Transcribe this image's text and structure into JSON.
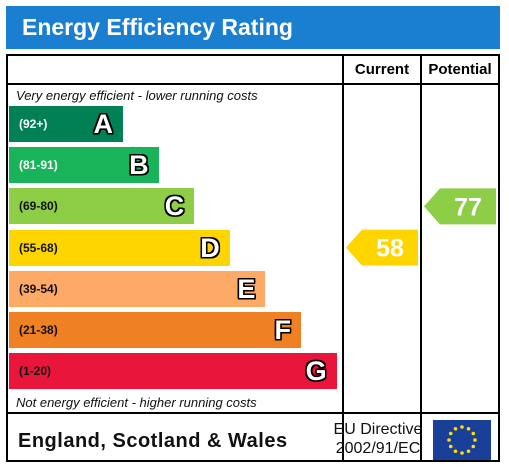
{
  "title": "Energy Efficiency Rating",
  "columns": {
    "current": "Current",
    "potential": "Potential"
  },
  "notes": {
    "top": "Very energy efficient - lower running costs",
    "bottom": "Not energy efficient - higher running costs"
  },
  "chart_data": {
    "type": "bar",
    "categories": [
      "A",
      "B",
      "C",
      "D",
      "E",
      "F",
      "G"
    ],
    "ranges": [
      "(92+)",
      "(81-91)",
      "(69-80)",
      "(55-68)",
      "(39-54)",
      "(21-38)",
      "(1-20)"
    ],
    "colors": [
      "#008054",
      "#19b459",
      "#8dce46",
      "#ffd500",
      "#fcaa65",
      "#ef8023",
      "#e9153b"
    ],
    "current": {
      "value": 58,
      "band": "D",
      "color": "#ffd500"
    },
    "potential": {
      "value": 77,
      "band": "C",
      "color": "#8dce46"
    }
  },
  "footer": {
    "region": "England, Scotland & Wales",
    "directive_line1": "EU Directive",
    "directive_line2": "2002/91/EC"
  }
}
